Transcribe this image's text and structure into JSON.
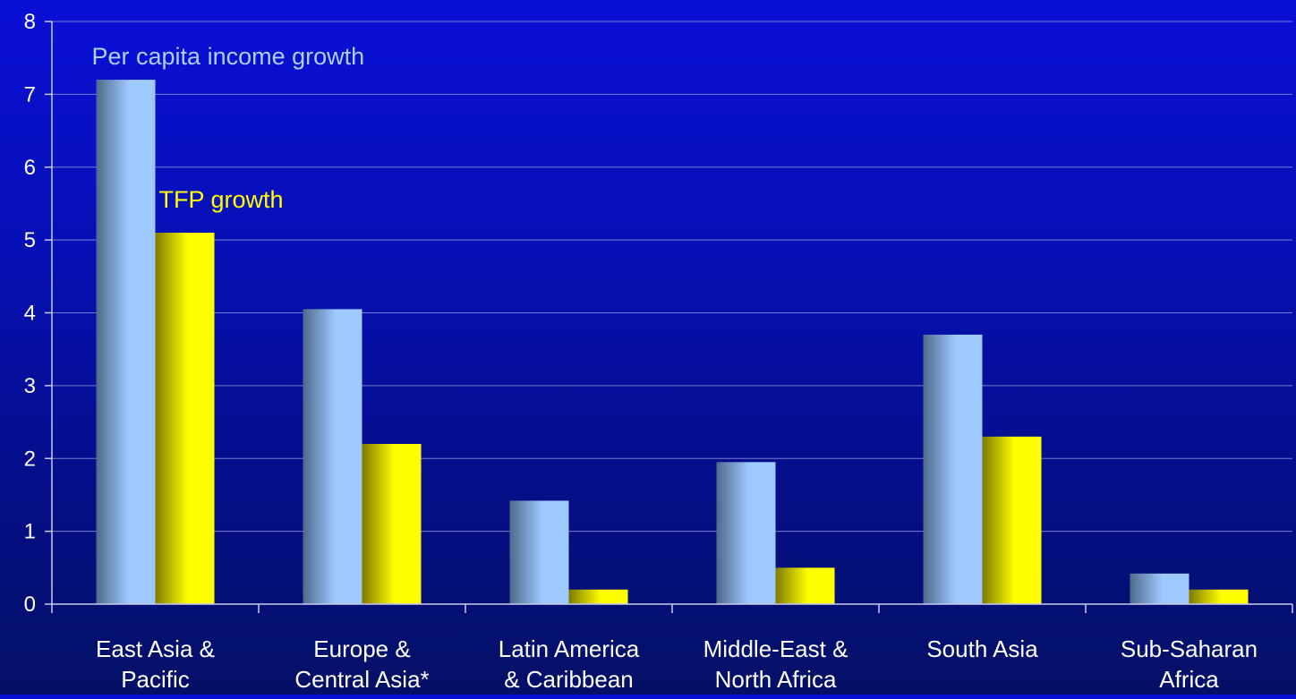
{
  "chart_data": {
    "type": "bar",
    "title": "",
    "xlabel": "",
    "ylabel": "",
    "ylim": [
      0,
      8
    ],
    "yticks": [
      "0",
      "1",
      "2",
      "3",
      "4",
      "5",
      "6",
      "7",
      "8"
    ],
    "grid": true,
    "categories": [
      [
        "East Asia &",
        "Pacific"
      ],
      [
        "Europe &",
        "Central Asia*"
      ],
      [
        "Latin America",
        "& Caribbean"
      ],
      [
        "Middle-East &",
        "North Africa"
      ],
      [
        "South Asia"
      ],
      [
        "Sub-Saharan",
        "Africa"
      ]
    ],
    "series": [
      {
        "name": "Per capita income growth",
        "values": [
          7.2,
          4.05,
          1.42,
          1.95,
          3.7,
          0.42
        ],
        "color": "#9ec9ff",
        "shade": "#4e6a8c"
      },
      {
        "name": "TFP growth",
        "values": [
          5.1,
          2.2,
          0.2,
          0.5,
          2.3,
          0.2
        ],
        "color": "#ffff00",
        "shade": "#7f7a00"
      }
    ]
  }
}
